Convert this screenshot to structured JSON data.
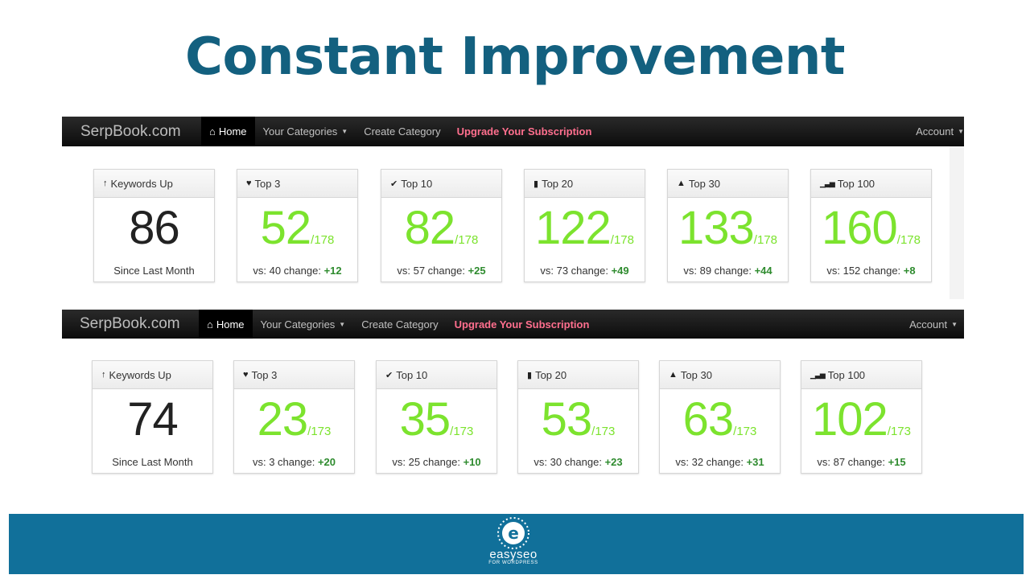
{
  "title": "Constant Improvement",
  "dashboards": [
    {
      "nav": {
        "brand": "SerpBook.com",
        "home": "Home",
        "categories": "Your Categories",
        "create": "Create Category",
        "upgrade": "Upgrade Your Subscription",
        "account": "Account"
      },
      "cards": [
        {
          "label": "Keywords Up",
          "icon": "arrow-up-icon",
          "value": "86",
          "total": "",
          "footer_text": "Since Last Month",
          "change": ""
        },
        {
          "label": "Top 3",
          "icon": "heart-icon",
          "value": "52",
          "total": "/178",
          "footer_text": "vs: 40 change:",
          "change": "+12"
        },
        {
          "label": "Top 10",
          "icon": "checkmark-icon",
          "value": "82",
          "total": "/178",
          "footer_text": "vs: 57 change:",
          "change": "+25"
        },
        {
          "label": "Top 20",
          "icon": "bookmark-icon",
          "value": "122",
          "total": "/178",
          "footer_text": "vs: 73 change:",
          "change": "+49"
        },
        {
          "label": "Top 30",
          "icon": "road-icon",
          "value": "133",
          "total": "/178",
          "footer_text": "vs: 89 change:",
          "change": "+44"
        },
        {
          "label": "Top 100",
          "icon": "signal-bars-icon",
          "value": "160",
          "total": "/178",
          "footer_text": "vs: 152 change:",
          "change": "+8"
        }
      ]
    },
    {
      "nav": {
        "brand": "SerpBook.com",
        "home": "Home",
        "categories": "Your Categories",
        "create": "Create Category",
        "upgrade": "Upgrade Your Subscription",
        "account": "Account"
      },
      "cards": [
        {
          "label": "Keywords Up",
          "icon": "arrow-up-icon",
          "value": "74",
          "total": "",
          "footer_text": "Since Last Month",
          "change": ""
        },
        {
          "label": "Top 3",
          "icon": "heart-icon",
          "value": "23",
          "total": "/173",
          "footer_text": "vs: 3 change:",
          "change": "+20"
        },
        {
          "label": "Top 10",
          "icon": "checkmark-icon",
          "value": "35",
          "total": "/173",
          "footer_text": "vs: 25 change:",
          "change": "+10"
        },
        {
          "label": "Top 20",
          "icon": "bookmark-icon",
          "value": "53",
          "total": "/173",
          "footer_text": "vs: 30 change:",
          "change": "+23"
        },
        {
          "label": "Top 30",
          "icon": "road-icon",
          "value": "63",
          "total": "/173",
          "footer_text": "vs: 32 change:",
          "change": "+31"
        },
        {
          "label": "Top 100",
          "icon": "signal-bars-icon",
          "value": "102",
          "total": "/173",
          "footer_text": "vs: 87 change:",
          "change": "+15"
        }
      ]
    }
  ],
  "colors": {
    "title": "#13607f",
    "value_green": "#7ce32e",
    "change_green": "#2e8b2e",
    "upgrade_pink": "#ff6f8e",
    "footer_band": "#11709a"
  },
  "footer": {
    "logo_word": "easyseo",
    "logo_sub": "FOR WORDPRESS",
    "logo_icon": "easyseo-logo-icon"
  }
}
